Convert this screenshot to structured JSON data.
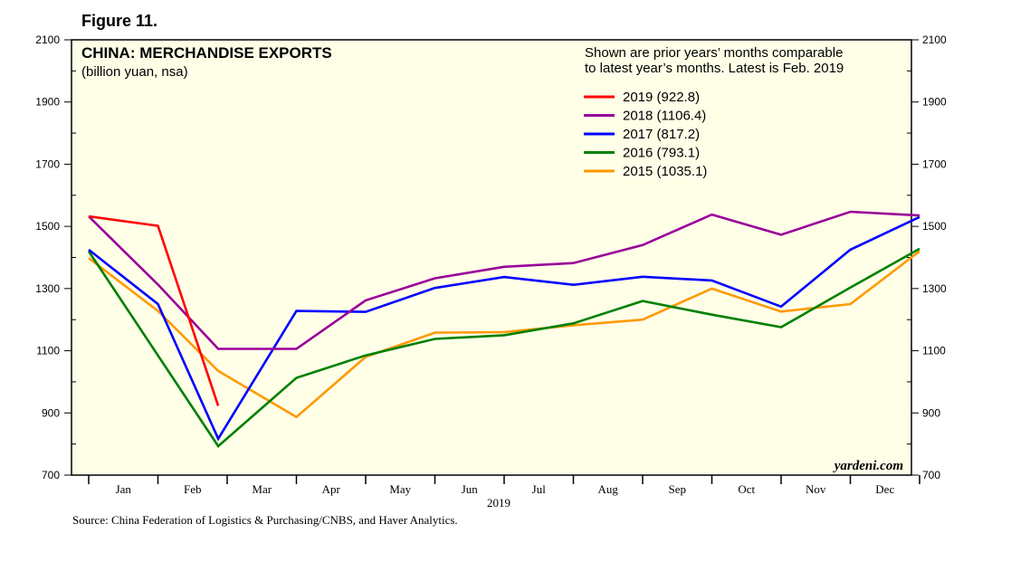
{
  "figure_label": "Figure 11.",
  "source": "Source: China Federation of Logistics & Purchasing/CNBS, and Haver Analytics.",
  "watermark": "yardeni.com",
  "chart_data": {
    "type": "line",
    "title": "CHINA: MERCHANDISE EXPORTS",
    "subtitle": "(billion yuan, nsa)",
    "note_lines": [
      "Shown are prior years’ months comparable",
      "to latest year’s months. Latest is Feb. 2019"
    ],
    "xlabel": "2019",
    "ylabel": "",
    "categories": [
      "Jan",
      "Feb",
      "Mar",
      "Apr",
      "May",
      "Jun",
      "Jul",
      "Aug",
      "Sep",
      "Oct",
      "Nov",
      "Dec"
    ],
    "ylim": [
      700,
      2100
    ],
    "yticks": [
      700,
      900,
      1100,
      1300,
      1500,
      1700,
      1900,
      2100
    ],
    "grid": false,
    "legend_position": "top-right",
    "background": "#FFFFE8",
    "series": [
      {
        "name": "2019 (922.8)",
        "color": "#FF0000",
        "x": [
          0.0,
          1.0,
          1.87
        ],
        "values": [
          1532,
          1502,
          923
        ]
      },
      {
        "name": "2018 (1106.4)",
        "color": "#990099",
        "x": [
          0.0,
          1.0,
          1.87,
          3.0,
          4.0,
          5.0,
          6.0,
          7.0,
          8.0,
          9.0,
          10.0,
          11.0,
          12.0
        ],
        "values": [
          1532,
          1313,
          1106,
          1106,
          1262,
          1333,
          1370,
          1382,
          1440,
          1538,
          1473,
          1547,
          1535
        ]
      },
      {
        "name": "2017 (817.2)",
        "color": "#0000FF",
        "x": [
          0.0,
          1.0,
          1.87,
          3.0,
          4.0,
          5.0,
          6.0,
          7.0,
          8.0,
          9.0,
          10.0,
          11.0,
          12.0
        ],
        "values": [
          1425,
          1250,
          817,
          1228,
          1225,
          1302,
          1337,
          1312,
          1338,
          1326,
          1242,
          1425,
          1530
        ]
      },
      {
        "name": "2016 (793.1)",
        "color": "#008000",
        "x": [
          0.0,
          1.87,
          3.0,
          4.0,
          5.0,
          6.0,
          7.0,
          8.0,
          9.0,
          10.0,
          11.0,
          12.0
        ],
        "values": [
          1420,
          793,
          1013,
          1085,
          1138,
          1150,
          1188,
          1260,
          1216,
          1176,
          1303,
          1428
        ]
      },
      {
        "name": "2015 (1035.1)",
        "color": "#FF9900",
        "x": [
          0.0,
          1.0,
          1.87,
          3.0,
          4.0,
          5.0,
          6.0,
          7.0,
          8.0,
          9.0,
          10.0,
          11.0,
          12.0
        ],
        "values": [
          1398,
          1228,
          1035,
          887,
          1080,
          1158,
          1160,
          1182,
          1200,
          1300,
          1226,
          1250,
          1420
        ]
      }
    ]
  }
}
